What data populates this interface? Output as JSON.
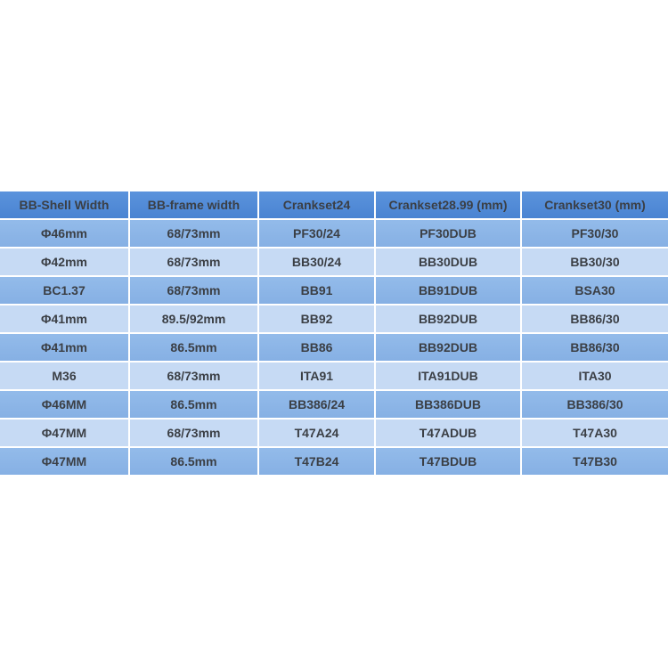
{
  "table": {
    "headers": [
      "BB-Shell Width",
      "BB-frame width",
      "Crankset24",
      "Crankset28.99 (mm)",
      "Crankset30 (mm)"
    ],
    "rows": [
      [
        "Φ46mm",
        "68/73mm",
        "PF30/24",
        "PF30DUB",
        "PF30/30"
      ],
      [
        "Φ42mm",
        "68/73mm",
        "BB30/24",
        "BB30DUB",
        "BB30/30"
      ],
      [
        "BC1.37",
        "68/73mm",
        "BB91",
        "BB91DUB",
        "BSA30"
      ],
      [
        "Φ41mm",
        "89.5/92mm",
        "BB92",
        "BB92DUB",
        "BB86/30"
      ],
      [
        "Φ41mm",
        "86.5mm",
        "BB86",
        "BB92DUB",
        "BB86/30"
      ],
      [
        "M36",
        "68/73mm",
        "ITA91",
        "ITA91DUB",
        "ITA30"
      ],
      [
        "Φ46MM",
        "86.5mm",
        "BB386/24",
        "BB386DUB",
        "BB386/30"
      ],
      [
        "Φ47MM",
        "68/73mm",
        "T47A24",
        "T47ADUB",
        "T47A30"
      ],
      [
        "Φ47MM",
        "86.5mm",
        "T47B24",
        "T47BDUB",
        "T47B30"
      ]
    ]
  },
  "colors": {
    "header": "#4f88d6",
    "row_odd": "#8ab4e6",
    "row_even": "#c6daf4",
    "text": "#3b3f45"
  }
}
